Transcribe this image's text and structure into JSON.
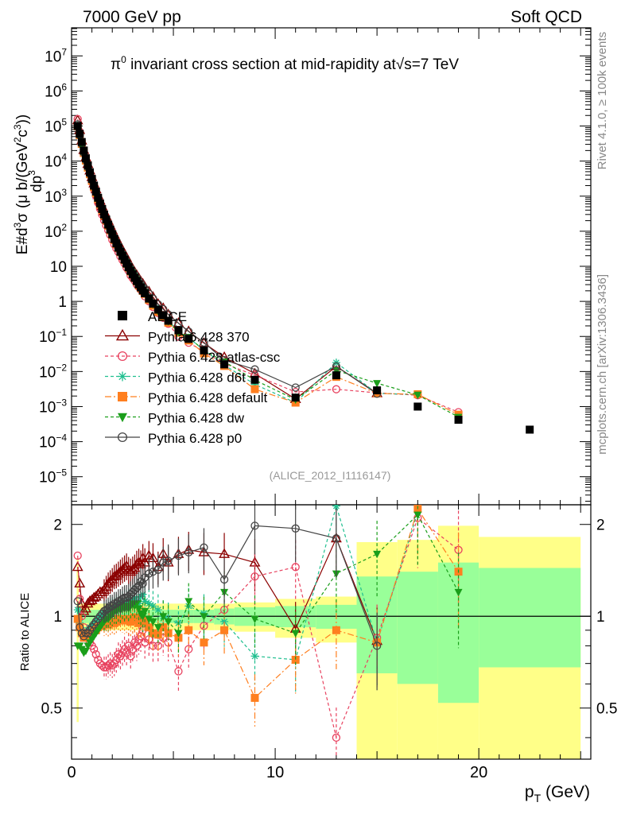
{
  "chart_data": {
    "type": "scatter",
    "header_left": "7000 GeV pp",
    "header_right": "Soft QCD",
    "title_prefix": "π",
    "title_sup": "0",
    "title_mid": " invariant cross section at mid-rapidity at",
    "title_sqrt": "√s",
    "title_suffix": "=7 TeV",
    "ylabel": "E#d³σ/dp³ (μ b/(GeV²c³))",
    "ylabel_parts": {
      "num": "E#d",
      "num_sup": "3",
      "num_sigma": "σ",
      "den": "dp",
      "den_sup": "3",
      "units": "(μ b/(GeV",
      "units_sup1": "2",
      "units_mid": "c",
      "units_sup2": "3",
      "units_end": "))"
    },
    "ratio_ylabel": "Ratio to ALICE",
    "xlabel_main": "p",
    "xlabel_sub": "T",
    "xlabel_units": " (GeV)",
    "side_text_top": "Rivet 4.1.0, ≥ 100k events",
    "side_text_bottom": "mcplots.cern.ch [arXiv:1306.3436]",
    "analysis_id": "(ALICE_2012_I1116147)",
    "xlim": [
      0,
      25.5
    ],
    "ylim_log": [
      -5.8,
      7.8
    ],
    "ratio_ylim": [
      0.34,
      2.32
    ],
    "x_ticks": [
      0,
      10,
      20
    ],
    "y_ticks": [
      {
        "exp": -5,
        "label": "10",
        "sup": "−5"
      },
      {
        "exp": -4,
        "label": "10",
        "sup": "−4"
      },
      {
        "exp": -3,
        "label": "10",
        "sup": "−3"
      },
      {
        "exp": -2,
        "label": "10",
        "sup": "−2"
      },
      {
        "exp": -1,
        "label": "10",
        "sup": "−1"
      },
      {
        "exp": 0,
        "label": "1",
        "sup": ""
      },
      {
        "exp": 1,
        "label": "10",
        "sup": ""
      },
      {
        "exp": 2,
        "label": "10",
        "sup": "2"
      },
      {
        "exp": 3,
        "label": "10",
        "sup": "3"
      },
      {
        "exp": 4,
        "label": "10",
        "sup": "4"
      },
      {
        "exp": 5,
        "label": "10",
        "sup": "5"
      },
      {
        "exp": 6,
        "label": "10",
        "sup": "6"
      },
      {
        "exp": 7,
        "label": "10",
        "sup": "7"
      }
    ],
    "ratio_ticks": [
      {
        "value": 0.5,
        "label": "0.5"
      },
      {
        "value": 1,
        "label": "1"
      },
      {
        "value": 2,
        "label": "2"
      }
    ],
    "colors": {
      "alice": "#000000",
      "p370": "#8b0000",
      "atlas": "#e8425f",
      "d6t": "#1fbf8f",
      "default": "#ff7f1f",
      "dw": "#1a9e1a",
      "p0": "#444444",
      "band_yellow": "#ffff88",
      "band_green": "#99ff99"
    },
    "data_x": [
      0.3,
      0.4,
      0.5,
      0.6,
      0.7,
      0.8,
      0.9,
      1.0,
      1.1,
      1.2,
      1.3,
      1.4,
      1.5,
      1.6,
      1.7,
      1.8,
      1.9,
      2.0,
      2.1,
      2.2,
      2.3,
      2.4,
      2.5,
      2.6,
      2.7,
      2.8,
      2.9,
      3.0,
      3.1,
      3.2,
      3.3,
      3.4,
      3.5,
      3.6,
      3.8,
      4.0,
      4.25,
      4.5,
      4.75,
      5.25,
      5.75,
      6.5,
      7.5,
      9.0,
      11.0,
      13.0,
      15.0,
      17.0,
      19.0,
      22.5
    ],
    "alice_values": [
      100000,
      60000,
      35000,
      20000,
      12000,
      7500,
      4800,
      3100,
      2000,
      1350,
      900,
      620,
      430,
      300,
      215,
      155,
      112,
      82,
      60,
      45,
      34,
      26,
      20,
      15.5,
      12,
      9.4,
      7.4,
      5.9,
      4.7,
      3.8,
      3.05,
      2.5,
      2.05,
      1.7,
      1.2,
      0.86,
      0.58,
      0.4,
      0.28,
      0.15,
      0.085,
      0.04,
      0.016,
      0.0058,
      0.0018,
      0.0078,
      0.0029,
      0.001,
      0.00042,
      0.00022
    ],
    "series": [
      {
        "name": "ALICE",
        "key": "alice",
        "marker": "square",
        "values": [
          100000,
          60000,
          35000,
          20000,
          12000,
          7500,
          4800,
          3100,
          2000,
          1350,
          900,
          620,
          430,
          300,
          215,
          155,
          112,
          82,
          60,
          45,
          34,
          26,
          20,
          15.5,
          12,
          9.4,
          7.4,
          5.9,
          4.7,
          3.8,
          3.05,
          2.5,
          2.05,
          1.7,
          1.2,
          0.86,
          0.58,
          0.4,
          0.28,
          0.15,
          0.085,
          0.04,
          0.016,
          0.0058,
          0.0018,
          0.0078,
          0.0029,
          0.001,
          0.00042,
          0.00022
        ]
      },
      {
        "name": "Pythia 6.428 370",
        "key": "p370",
        "marker": "triangle-open",
        "dash": "",
        "ratios": [
          1.45,
          1.28,
          1.1,
          1.04,
          1.06,
          1.1,
          1.12,
          1.13,
          1.15,
          1.16,
          1.18,
          1.2,
          1.2,
          1.22,
          1.25,
          1.28,
          1.3,
          1.32,
          1.35,
          1.36,
          1.38,
          1.4,
          1.42,
          1.44,
          1.46,
          1.42,
          1.4,
          1.42,
          1.44,
          1.48,
          1.5,
          1.48,
          1.55,
          1.5,
          1.58,
          1.55,
          1.45,
          1.6,
          1.5,
          1.6,
          1.65,
          1.62,
          1.6,
          1.5,
          0.91,
          1.8,
          0.83,
          null,
          null,
          null
        ]
      },
      {
        "name": "Pythia 6.428 atlas-csc",
        "key": "atlas",
        "marker": "circle-open",
        "dash": "4,3",
        "ratios": [
          1.58,
          1.14,
          1.0,
          0.92,
          0.88,
          0.85,
          0.82,
          0.8,
          0.78,
          0.75,
          0.72,
          0.7,
          0.69,
          0.68,
          0.68,
          0.69,
          0.7,
          0.69,
          0.7,
          0.72,
          0.75,
          0.74,
          0.76,
          0.78,
          0.76,
          0.8,
          0.74,
          0.78,
          0.82,
          0.8,
          0.84,
          0.86,
          0.9,
          0.82,
          0.84,
          0.8,
          0.8,
          0.85,
          0.82,
          0.66,
          0.78,
          0.93,
          1.05,
          1.35,
          1.45,
          0.4,
          0.85,
          2.1,
          1.65,
          null
        ]
      },
      {
        "name": "Pythia 6.428 d6t",
        "key": "d6t",
        "marker": "star",
        "dash": "4,3",
        "ratios": [
          1.05,
          0.95,
          0.9,
          0.87,
          0.88,
          0.9,
          0.92,
          0.93,
          0.94,
          0.96,
          0.98,
          1.0,
          1.0,
          1.02,
          1.02,
          1.04,
          1.05,
          1.06,
          1.06,
          1.08,
          1.08,
          1.1,
          1.1,
          1.12,
          1.1,
          1.12,
          1.12,
          1.14,
          1.15,
          1.12,
          1.1,
          1.16,
          1.18,
          1.12,
          1.1,
          1.08,
          1.05,
          1.0,
          0.98,
          0.95,
          1.08,
          1.02,
          0.96,
          0.74,
          0.72,
          2.3,
          0.82,
          2.2,
          null,
          null
        ]
      },
      {
        "name": "Pythia 6.428 default",
        "key": "default",
        "marker": "square",
        "dash": "8,3,2,3",
        "ratios": [
          0.98,
          0.92,
          0.88,
          0.85,
          0.86,
          0.87,
          0.88,
          0.88,
          0.9,
          0.9,
          0.92,
          0.93,
          0.93,
          0.94,
          0.95,
          0.94,
          0.95,
          0.96,
          0.95,
          0.96,
          0.98,
          0.97,
          0.98,
          0.97,
          0.98,
          0.97,
          0.96,
          0.98,
          0.99,
          0.97,
          0.95,
          0.96,
          0.97,
          0.96,
          0.92,
          0.88,
          0.87,
          0.92,
          0.88,
          0.85,
          0.9,
          0.82,
          0.9,
          0.54,
          0.72,
          0.9,
          0.82,
          2.25,
          1.4,
          null
        ]
      },
      {
        "name": "Pythia 6.428 dw",
        "key": "dw",
        "marker": "triangle-down",
        "dash": "4,3",
        "ratios": [
          0.8,
          0.8,
          0.78,
          0.76,
          0.77,
          0.8,
          0.82,
          0.84,
          0.86,
          0.88,
          0.9,
          0.92,
          0.94,
          0.96,
          0.98,
          0.98,
          1.0,
          1.02,
          1.04,
          1.04,
          1.06,
          1.05,
          1.08,
          1.06,
          1.08,
          1.06,
          1.08,
          1.1,
          1.08,
          1.1,
          1.06,
          1.02,
          1.0,
          1.04,
          0.98,
          0.96,
          0.92,
          1.0,
          0.96,
          0.88,
          1.12,
          1.0,
          1.2,
          0.98,
          0.88,
          1.38,
          1.6,
          2.15,
          1.2,
          null
        ]
      },
      {
        "name": "Pythia 6.428 p0",
        "key": "p0",
        "marker": "circle-open",
        "dash": "",
        "ratios": [
          1.12,
          0.92,
          0.88,
          0.86,
          0.88,
          0.88,
          0.9,
          0.92,
          0.94,
          0.96,
          0.98,
          1.0,
          1.02,
          1.04,
          1.05,
          1.06,
          1.08,
          1.08,
          1.1,
          1.1,
          1.12,
          1.12,
          1.14,
          1.15,
          1.15,
          1.16,
          1.18,
          1.2,
          1.22,
          1.24,
          1.26,
          1.3,
          1.28,
          1.34,
          1.38,
          1.4,
          1.42,
          1.5,
          1.52,
          1.58,
          1.62,
          1.68,
          1.32,
          1.98,
          1.94,
          1.8,
          0.8,
          null,
          null,
          null
        ]
      }
    ],
    "bands": {
      "edges": [
        0.25,
        0.35,
        0.45,
        0.55,
        0.65,
        0.75,
        0.85,
        0.95,
        1.05,
        1.15,
        1.25,
        1.35,
        1.45,
        1.55,
        1.65,
        1.75,
        1.85,
        1.95,
        2.05,
        2.15,
        2.25,
        2.35,
        2.45,
        2.55,
        2.65,
        2.75,
        2.85,
        2.95,
        3.05,
        3.15,
        3.25,
        3.35,
        3.45,
        3.55,
        3.7,
        3.9,
        4.1,
        4.4,
        4.6,
        5.0,
        5.5,
        6.0,
        7.0,
        8.0,
        10.0,
        12.0,
        14.0,
        16.0,
        18.0,
        20.0,
        25.0
      ],
      "yellow_lo": [
        0.45,
        0.88,
        0.9,
        0.9,
        0.9,
        0.9,
        0.9,
        0.9,
        0.9,
        0.9,
        0.9,
        0.9,
        0.9,
        0.9,
        0.9,
        0.9,
        0.9,
        0.9,
        0.9,
        0.9,
        0.9,
        0.9,
        0.9,
        0.9,
        0.9,
        0.9,
        0.9,
        0.9,
        0.9,
        0.9,
        0.9,
        0.9,
        0.9,
        0.9,
        0.9,
        0.9,
        0.9,
        0.9,
        0.9,
        0.9,
        0.9,
        0.9,
        0.9,
        0.89,
        0.85,
        0.82,
        0.2,
        0.2,
        0.2,
        0.2,
        0.2
      ],
      "yellow_hi": [
        1.55,
        1.12,
        1.1,
        1.1,
        1.1,
        1.1,
        1.1,
        1.1,
        1.1,
        1.1,
        1.1,
        1.1,
        1.1,
        1.1,
        1.1,
        1.1,
        1.1,
        1.1,
        1.1,
        1.1,
        1.1,
        1.1,
        1.1,
        1.1,
        1.1,
        1.1,
        1.1,
        1.1,
        1.1,
        1.1,
        1.1,
        1.1,
        1.1,
        1.1,
        1.1,
        1.1,
        1.1,
        1.1,
        1.1,
        1.1,
        1.1,
        1.1,
        1.1,
        1.11,
        1.14,
        1.16,
        1.75,
        1.78,
        1.98,
        1.82,
        1.82
      ],
      "green_lo": [
        0.92,
        0.93,
        0.94,
        0.95,
        0.95,
        0.95,
        0.95,
        0.95,
        0.95,
        0.95,
        0.95,
        0.95,
        0.95,
        0.95,
        0.95,
        0.95,
        0.95,
        0.95,
        0.95,
        0.95,
        0.95,
        0.95,
        0.95,
        0.95,
        0.95,
        0.95,
        0.95,
        0.95,
        0.95,
        0.95,
        0.95,
        0.95,
        0.95,
        0.95,
        0.95,
        0.95,
        0.95,
        0.95,
        0.95,
        0.95,
        0.95,
        0.95,
        0.94,
        0.93,
        0.92,
        0.91,
        0.65,
        0.6,
        0.52,
        0.68,
        0.68
      ],
      "green_hi": [
        1.08,
        1.07,
        1.06,
        1.05,
        1.05,
        1.05,
        1.05,
        1.05,
        1.05,
        1.05,
        1.05,
        1.05,
        1.05,
        1.05,
        1.05,
        1.05,
        1.05,
        1.05,
        1.05,
        1.05,
        1.05,
        1.05,
        1.05,
        1.05,
        1.05,
        1.05,
        1.05,
        1.05,
        1.05,
        1.05,
        1.05,
        1.05,
        1.05,
        1.05,
        1.05,
        1.05,
        1.05,
        1.05,
        1.05,
        1.05,
        1.05,
        1.05,
        1.06,
        1.07,
        1.08,
        1.09,
        1.35,
        1.4,
        1.5,
        1.44,
        1.44
      ]
    }
  }
}
